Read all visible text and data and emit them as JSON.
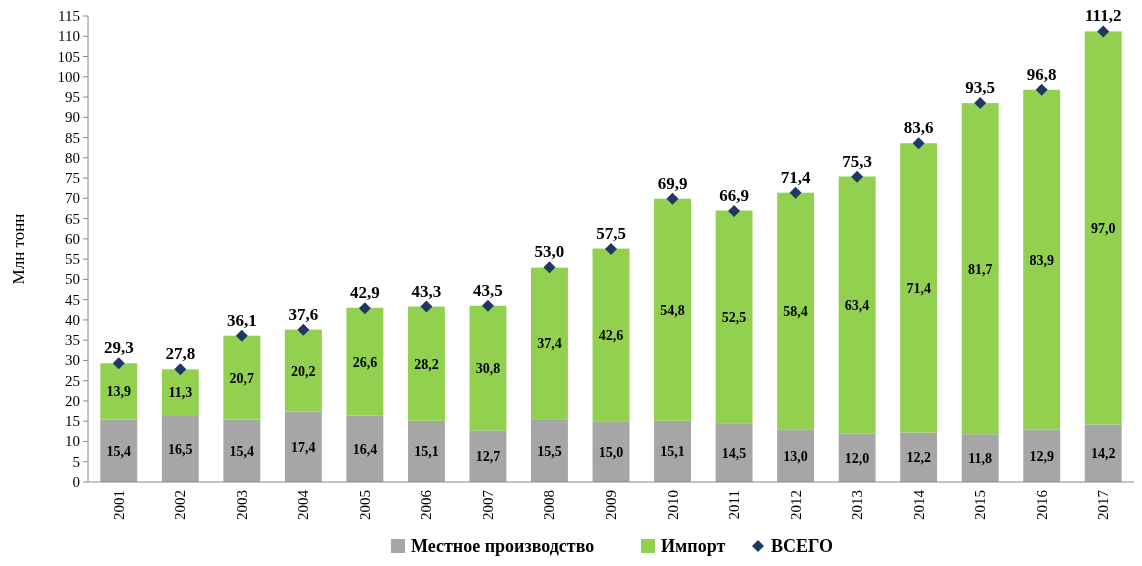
{
  "chart_data": {
    "type": "bar",
    "stacked": true,
    "ylabel": "Млн тонн",
    "categories": [
      "2001",
      "2002",
      "2003",
      "2004",
      "2005",
      "2006",
      "2007",
      "2008",
      "2009",
      "2010",
      "2011",
      "2012",
      "2013",
      "2014",
      "2015",
      "2016",
      "2017"
    ],
    "ylim": [
      0,
      115
    ],
    "yticks": [
      0,
      5,
      10,
      15,
      20,
      25,
      30,
      35,
      40,
      45,
      50,
      55,
      60,
      65,
      70,
      75,
      80,
      85,
      90,
      95,
      100,
      105,
      110,
      115
    ],
    "grid": false,
    "legend": "bottom",
    "series": [
      {
        "name": "Местное производство",
        "color": "#a6a6a6",
        "values": [
          15.4,
          16.5,
          15.4,
          17.4,
          16.4,
          15.1,
          12.7,
          15.5,
          15.0,
          15.1,
          14.5,
          13.0,
          12.0,
          12.2,
          11.8,
          12.9,
          14.2
        ],
        "value_labels": [
          "15,4",
          "16,5",
          "15,4",
          "17,4",
          "16,4",
          "15,1",
          "12,7",
          "15,5",
          "15,0",
          "15,1",
          "14,5",
          "13,0",
          "12,0",
          "12,2",
          "11,8",
          "12,9",
          "14,2"
        ]
      },
      {
        "name": "Импорт",
        "color": "#92d050",
        "values": [
          13.9,
          11.3,
          20.7,
          20.2,
          26.6,
          28.2,
          30.8,
          37.4,
          42.6,
          54.8,
          52.5,
          58.4,
          63.4,
          71.4,
          81.7,
          83.9,
          97.0
        ],
        "value_labels": [
          "13,9",
          "11,3",
          "20,7",
          "20,2",
          "26,6",
          "28,2",
          "30,8",
          "37,4",
          "42,6",
          "54,8",
          "52,5",
          "58,4",
          "63,4",
          "71,4",
          "81,7",
          "83,9",
          "97,0"
        ]
      },
      {
        "name": "ВСЕГО",
        "type": "scatter",
        "marker": "diamond",
        "color": "#1f3864",
        "values": [
          29.3,
          27.8,
          36.1,
          37.6,
          42.9,
          43.3,
          43.5,
          53.0,
          57.5,
          69.9,
          66.9,
          71.4,
          75.3,
          83.6,
          93.5,
          96.8,
          111.2
        ],
        "value_labels": [
          "29,3",
          "27,8",
          "36,1",
          "37,6",
          "42,9",
          "43,3",
          "43,5",
          "53,0",
          "57,5",
          "69,9",
          "66,9",
          "71,4",
          "75,3",
          "83,6",
          "93,5",
          "96,8",
          "111,2"
        ]
      }
    ]
  }
}
